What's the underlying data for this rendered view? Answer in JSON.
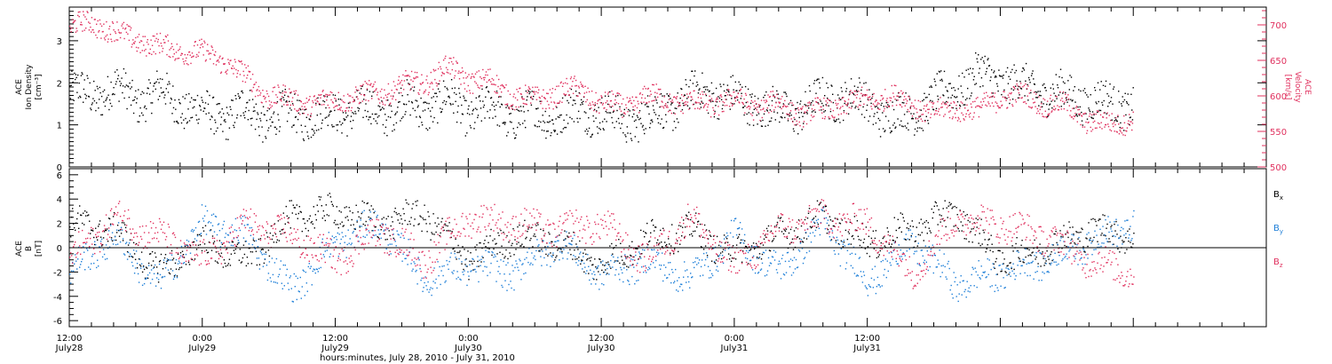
{
  "chart_data": [
    {
      "type": "scatter",
      "panel": "plasma",
      "ylabel_left": [
        "ACE",
        "Ion Density",
        "[cm⁻³]"
      ],
      "ylabel_right": [
        "ACE",
        "Velocity",
        "[km/s]"
      ],
      "ylim_left": [
        0,
        3.8
      ],
      "yticks_left": [
        "0",
        "1",
        "2",
        "3"
      ],
      "ylim_right": [
        500,
        725
      ],
      "yticks_right": [
        "500",
        "550",
        "600",
        "650",
        "700"
      ],
      "grid": false,
      "series": [
        {
          "axis": "left",
          "color": "#000000",
          "x_hours": [
            0,
            2,
            4,
            6,
            8,
            10,
            12,
            14,
            16,
            18,
            20,
            22,
            24,
            26,
            28,
            30,
            32,
            34,
            36,
            38,
            40,
            42,
            44,
            46,
            48,
            50,
            52,
            54,
            56,
            58,
            60,
            62,
            64,
            66,
            68,
            70,
            72,
            74,
            76,
            78,
            80,
            82,
            84,
            86,
            88,
            90,
            92,
            94,
            96
          ],
          "y_mean": [
            1.8,
            1.7,
            1.9,
            1.6,
            1.8,
            1.5,
            1.3,
            1.2,
            1.4,
            1.1,
            1.3,
            1.2,
            1.3,
            1.4,
            1.3,
            1.5,
            1.4,
            1.6,
            1.3,
            1.4,
            1.2,
            1.3,
            1.2,
            1.4,
            1.3,
            1.1,
            1.2,
            1.4,
            1.7,
            1.8,
            1.6,
            1.5,
            1.3,
            1.4,
            1.6,
            1.7,
            1.5,
            1.2,
            1.3,
            1.6,
            1.9,
            2.2,
            2.1,
            1.9,
            1.8,
            1.7,
            1.6,
            1.5,
            1.5
          ],
          "y_spread": 0.45
        },
        {
          "axis": "right",
          "color": "#e0305e",
          "x_hours": [
            0,
            2,
            4,
            6,
            8,
            10,
            12,
            14,
            16,
            18,
            20,
            22,
            24,
            26,
            28,
            30,
            32,
            34,
            36,
            38,
            40,
            42,
            44,
            46,
            48,
            50,
            52,
            54,
            56,
            58,
            60,
            62,
            64,
            66,
            68,
            70,
            72,
            74,
            76,
            78,
            80,
            82,
            84,
            86,
            88,
            90,
            92,
            94,
            96
          ],
          "y_mean": [
            695,
            705,
            690,
            680,
            670,
            665,
            660,
            650,
            625,
            600,
            595,
            590,
            595,
            600,
            605,
            615,
            620,
            640,
            625,
            620,
            600,
            595,
            605,
            610,
            590,
            585,
            600,
            595,
            590,
            590,
            595,
            585,
            590,
            575,
            580,
            590,
            595,
            600,
            590,
            575,
            585,
            580,
            600,
            600,
            590,
            585,
            565,
            560,
            570
          ],
          "y_spread": 15
        }
      ]
    },
    {
      "type": "scatter",
      "panel": "magnetic_field",
      "ylabel_left": [
        "ACE",
        "B",
        "[nT]"
      ],
      "ylim_left": [
        -6.5,
        6.5
      ],
      "yticks_left": [
        "-6",
        "-4",
        "-2",
        "0",
        "2",
        "4",
        "6"
      ],
      "zero_line": true,
      "legend_position": "right",
      "grid": false,
      "series": [
        {
          "name": "B",
          "sub": "x",
          "color": "#000000",
          "x_hours": [
            0,
            4,
            8,
            12,
            16,
            20,
            24,
            28,
            32,
            36,
            40,
            44,
            48,
            52,
            56,
            60,
            64,
            68,
            72,
            76,
            80,
            84,
            88,
            92,
            96
          ],
          "y_mean": [
            2,
            1.5,
            -2,
            0.5,
            -1,
            2.5,
            3,
            2,
            2.8,
            -1,
            1,
            0.5,
            -1.5,
            0.8,
            1.5,
            -0.5,
            1,
            2.5,
            0.5,
            1.5,
            3,
            -1,
            0,
            1.5,
            1
          ]
        },
        {
          "name": "B",
          "sub": "y",
          "color": "#1e7fd8",
          "x_hours": [
            0,
            4,
            8,
            12,
            16,
            20,
            24,
            28,
            32,
            36,
            40,
            44,
            48,
            52,
            56,
            60,
            64,
            68,
            72,
            76,
            80,
            84,
            88,
            92,
            96
          ],
          "y_mean": [
            -2,
            1,
            -3,
            2,
            1,
            -3.5,
            0.5,
            2,
            -2.5,
            -1.5,
            -2,
            0.5,
            -2.2,
            -1,
            -2.5,
            1,
            -2,
            2,
            -2.8,
            0.5,
            -3,
            -2,
            -1,
            0.5,
            2
          ]
        },
        {
          "name": "B",
          "sub": "z",
          "color": "#e0305e",
          "x_hours": [
            0,
            4,
            8,
            12,
            16,
            20,
            24,
            28,
            32,
            36,
            40,
            44,
            48,
            52,
            56,
            60,
            64,
            68,
            72,
            76,
            80,
            84,
            88,
            92,
            96
          ],
          "y_mean": [
            -1,
            2.5,
            1,
            -1,
            2,
            1,
            -1,
            1.5,
            -1,
            2.5,
            2,
            1.5,
            2,
            -1,
            2.5,
            -1.5,
            1.5,
            2.5,
            2,
            -2,
            2.5,
            2,
            1,
            -1,
            -2
          ]
        }
      ]
    }
  ],
  "x_axis": {
    "range_hours": [
      0,
      108
    ],
    "major_ticks": [
      {
        "hour": 0,
        "time": "12:00",
        "date": "July28"
      },
      {
        "hour": 12,
        "time": "0:00",
        "date": "July29"
      },
      {
        "hour": 24,
        "time": "12:00",
        "date": "July29"
      },
      {
        "hour": 36,
        "time": "0:00",
        "date": "July30"
      },
      {
        "hour": 48,
        "time": "12:00",
        "date": "July30"
      },
      {
        "hour": 60,
        "time": "0:00",
        "date": "July31"
      },
      {
        "hour": 72,
        "time": "12:00",
        "date": "July31"
      }
    ],
    "xlabel": "hours:minutes, July 28, 2010 - July 31, 2010"
  },
  "colors": {
    "black": "#000000",
    "red": "#e0305e",
    "blue": "#1e7fd8"
  }
}
